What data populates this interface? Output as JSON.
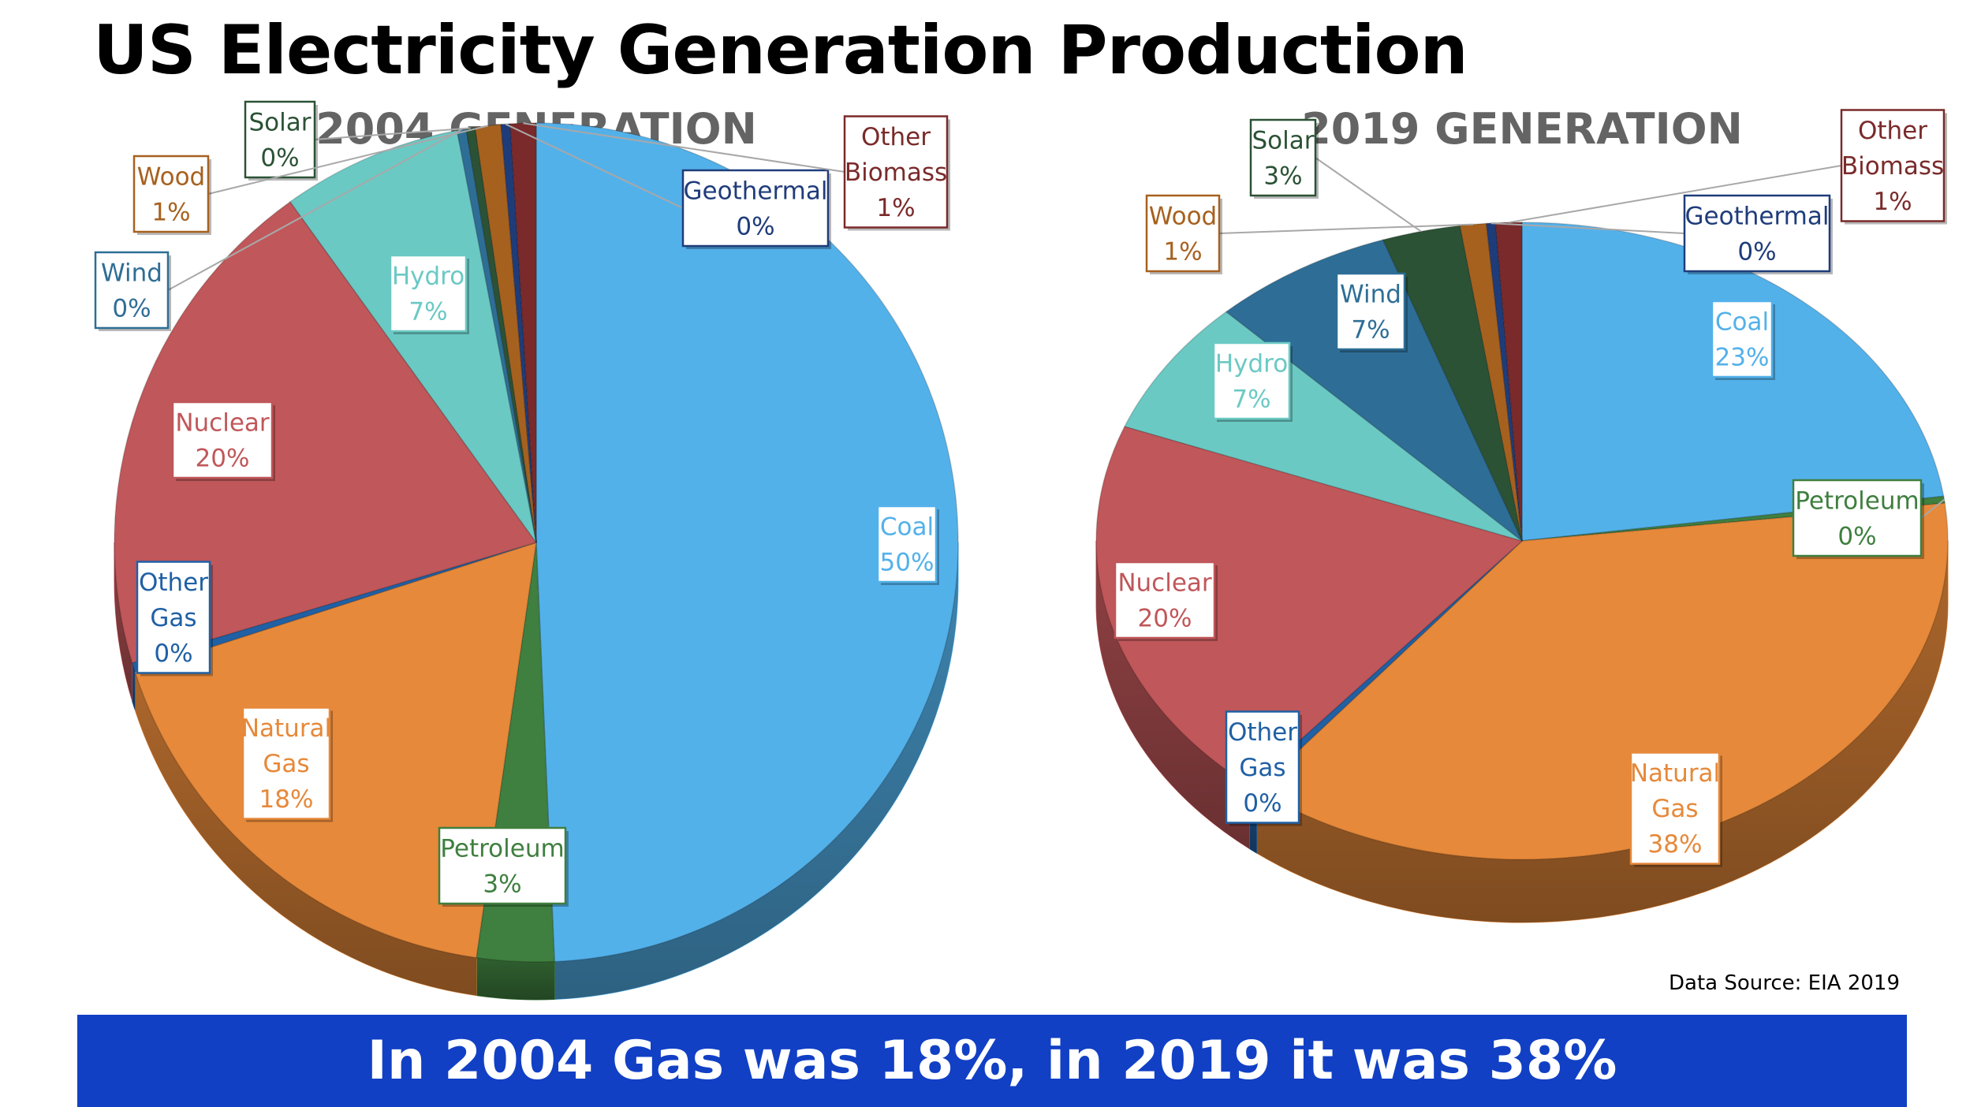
{
  "title": "US Electricity Generation Production",
  "source": "Data Source: EIA 2019",
  "banner": "In 2004 Gas was 18%, in 2019 it was 38%",
  "colors": {
    "coal": "#53b1ea",
    "natural_gas": "#e6893a",
    "nuclear": "#c0575a",
    "hydro": "#6bc9c4",
    "wind": "#2e6e96",
    "solar": "#2b5235",
    "wood": "#a7611f",
    "geothermal": "#1f3c7a",
    "other_biomass": "#7a2a2a",
    "petroleum": "#3f7f3f",
    "other_gas": "#2060a5",
    "banner": "#1140c5"
  },
  "chart_data": [
    {
      "type": "pie",
      "title": "2004 GENERATION",
      "slices": [
        {
          "name": "Coal",
          "value": 50,
          "label": "50%"
        },
        {
          "name": "Petroleum",
          "value": 3,
          "label": "3%"
        },
        {
          "name": "Natural Gas",
          "value": 18,
          "label": "18%"
        },
        {
          "name": "Other Gas",
          "value": 0,
          "label": "0%"
        },
        {
          "name": "Nuclear",
          "value": 20,
          "label": "20%"
        },
        {
          "name": "Hydro",
          "value": 7,
          "label": "7%"
        },
        {
          "name": "Wind",
          "value": 0,
          "label": "0%"
        },
        {
          "name": "Solar",
          "value": 0,
          "label": "0%"
        },
        {
          "name": "Wood",
          "value": 1,
          "label": "1%"
        },
        {
          "name": "Geothermal",
          "value": 0,
          "label": "0%"
        },
        {
          "name": "Other Biomass",
          "value": 1,
          "label": "1%"
        }
      ]
    },
    {
      "type": "pie",
      "title": "2019 GENERATION",
      "slices": [
        {
          "name": "Coal",
          "value": 23,
          "label": "23%"
        },
        {
          "name": "Petroleum",
          "value": 0,
          "label": "0%"
        },
        {
          "name": "Natural Gas",
          "value": 38,
          "label": "38%"
        },
        {
          "name": "Other Gas",
          "value": 0,
          "label": "0%"
        },
        {
          "name": "Nuclear",
          "value": 20,
          "label": "20%"
        },
        {
          "name": "Hydro",
          "value": 7,
          "label": "7%"
        },
        {
          "name": "Wind",
          "value": 7,
          "label": "7%"
        },
        {
          "name": "Solar",
          "value": 3,
          "label": "3%"
        },
        {
          "name": "Wood",
          "value": 1,
          "label": "1%"
        },
        {
          "name": "Geothermal",
          "value": 0,
          "label": "0%"
        },
        {
          "name": "Other Biomass",
          "value": 1,
          "label": "1%"
        }
      ]
    }
  ]
}
